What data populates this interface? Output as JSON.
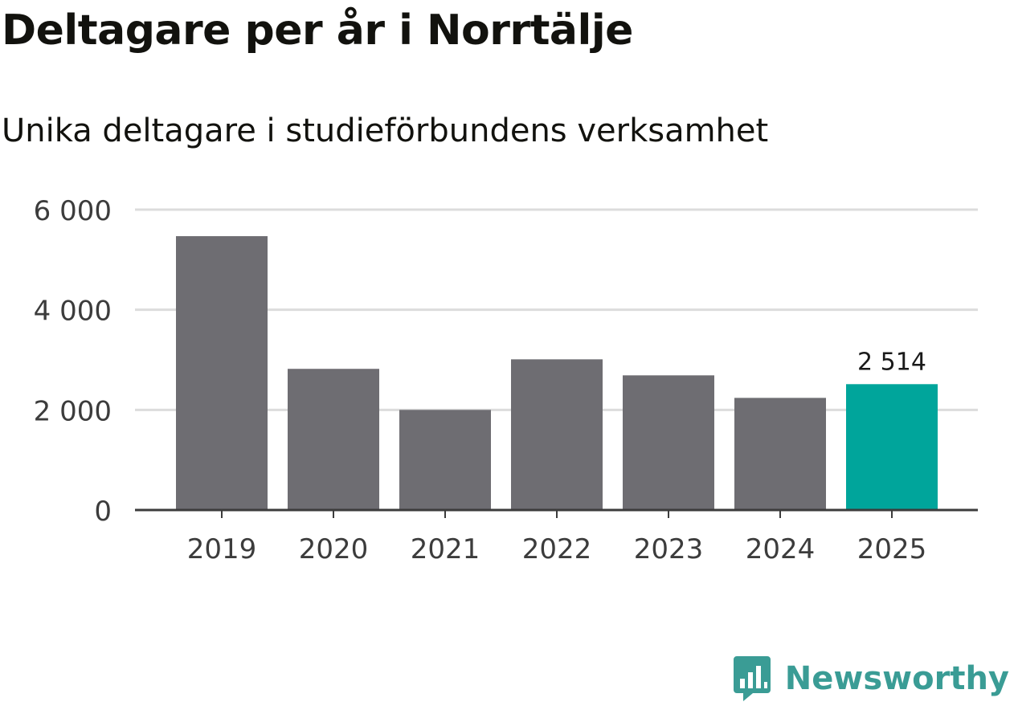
{
  "colors": {
    "bar_default": "#6e6d72",
    "bar_highlight": "#00a59b",
    "grid": "#dcdcdc",
    "axis": "#3c3c3c",
    "text": "#3c3c3c",
    "brand": "#3a9c95"
  },
  "chart_data": {
    "type": "bar",
    "title": "Deltagare per år i Norrtälje",
    "subtitle": "Unika deltagare i studieförbundens verksamhet",
    "xlabel": "",
    "ylabel": "",
    "categories": [
      "2019",
      "2020",
      "2021",
      "2022",
      "2023",
      "2024",
      "2025"
    ],
    "values": [
      5470,
      2820,
      2000,
      3010,
      2690,
      2240,
      2514
    ],
    "highlight_index": 6,
    "data_labels": [
      null,
      null,
      null,
      null,
      null,
      null,
      "2 514"
    ],
    "ylim": [
      0,
      6000
    ],
    "yticks": [
      0,
      2000,
      4000,
      6000
    ],
    "ytick_labels": [
      "0",
      "2 000",
      "4 000",
      "6 000"
    ],
    "grid": true,
    "legend": "none"
  },
  "brand": {
    "name": "Newsworthy",
    "icon": "newsworthy-logo-icon"
  }
}
